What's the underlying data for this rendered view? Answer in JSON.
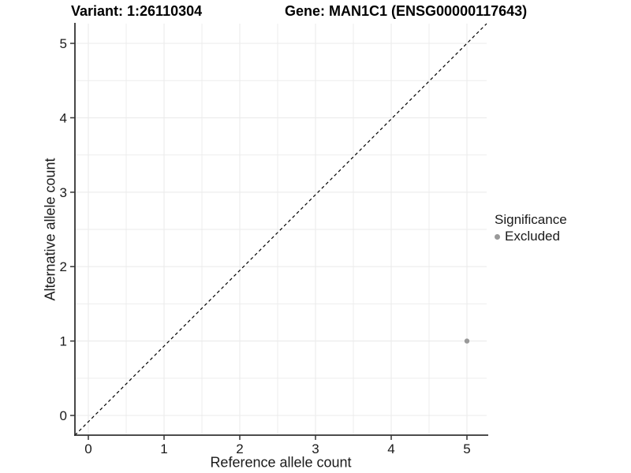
{
  "chart_data": {
    "type": "scatter",
    "titles": {
      "variant": "Variant: 1:26110304",
      "gene": "Gene: MAN1C1 (ENSG00000117643)"
    },
    "xlabel": "Reference allele count",
    "ylabel": "Alternative allele count",
    "x_ticks": [
      0,
      1,
      2,
      3,
      4,
      5
    ],
    "y_ticks": [
      0,
      1,
      2,
      3,
      4,
      5
    ],
    "xlim": [
      -0.18,
      5.26
    ],
    "ylim": [
      -0.26,
      5.26
    ],
    "grid": {
      "major": true,
      "minor": true,
      "color": "#ebebeb"
    },
    "identity_line": {
      "equation": "y = x",
      "style": "dashed",
      "color": "#000000"
    },
    "series": [
      {
        "name": "Excluded",
        "color": "#999999",
        "points": [
          [
            5,
            1
          ]
        ]
      }
    ],
    "legend": {
      "title": "Significance",
      "position": "right"
    }
  },
  "colors": {
    "axis": "#333333",
    "tick_text": "#1a1a1a",
    "background": "#ffffff"
  }
}
